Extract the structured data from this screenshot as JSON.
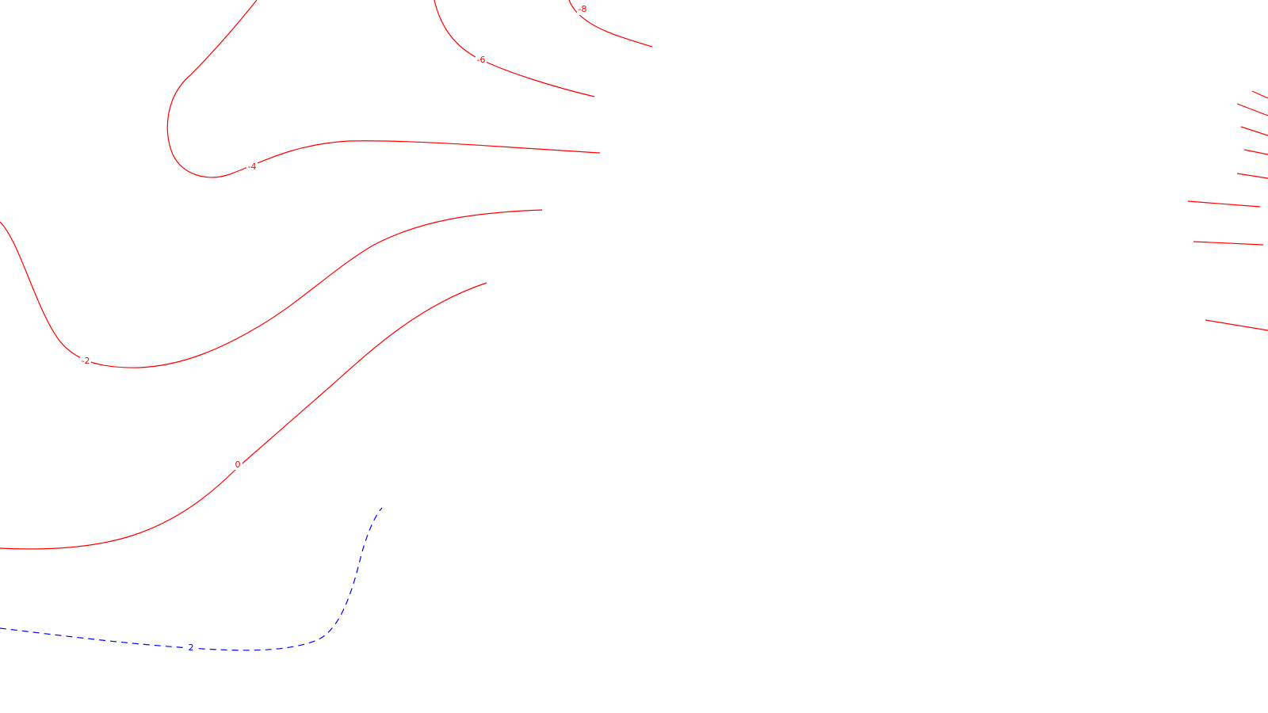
{
  "colors": {
    "background": "#ffffff",
    "negative_contour": "#ff0000",
    "positive_contour": "#0000ff"
  },
  "contours": {
    "minus8": {
      "label": "-8",
      "style": "solid",
      "color": "#ff0000"
    },
    "minus6": {
      "label": "-6",
      "style": "solid",
      "color": "#ff0000"
    },
    "minus4": {
      "label": "-4",
      "style": "solid",
      "color": "#ff0000"
    },
    "minus2": {
      "label": "-2",
      "style": "solid",
      "color": "#ff0000"
    },
    "zero": {
      "label": "0",
      "style": "solid",
      "color": "#ff0000"
    },
    "plus2": {
      "label": "2",
      "style": "dashed",
      "color": "#0000ff"
    }
  }
}
